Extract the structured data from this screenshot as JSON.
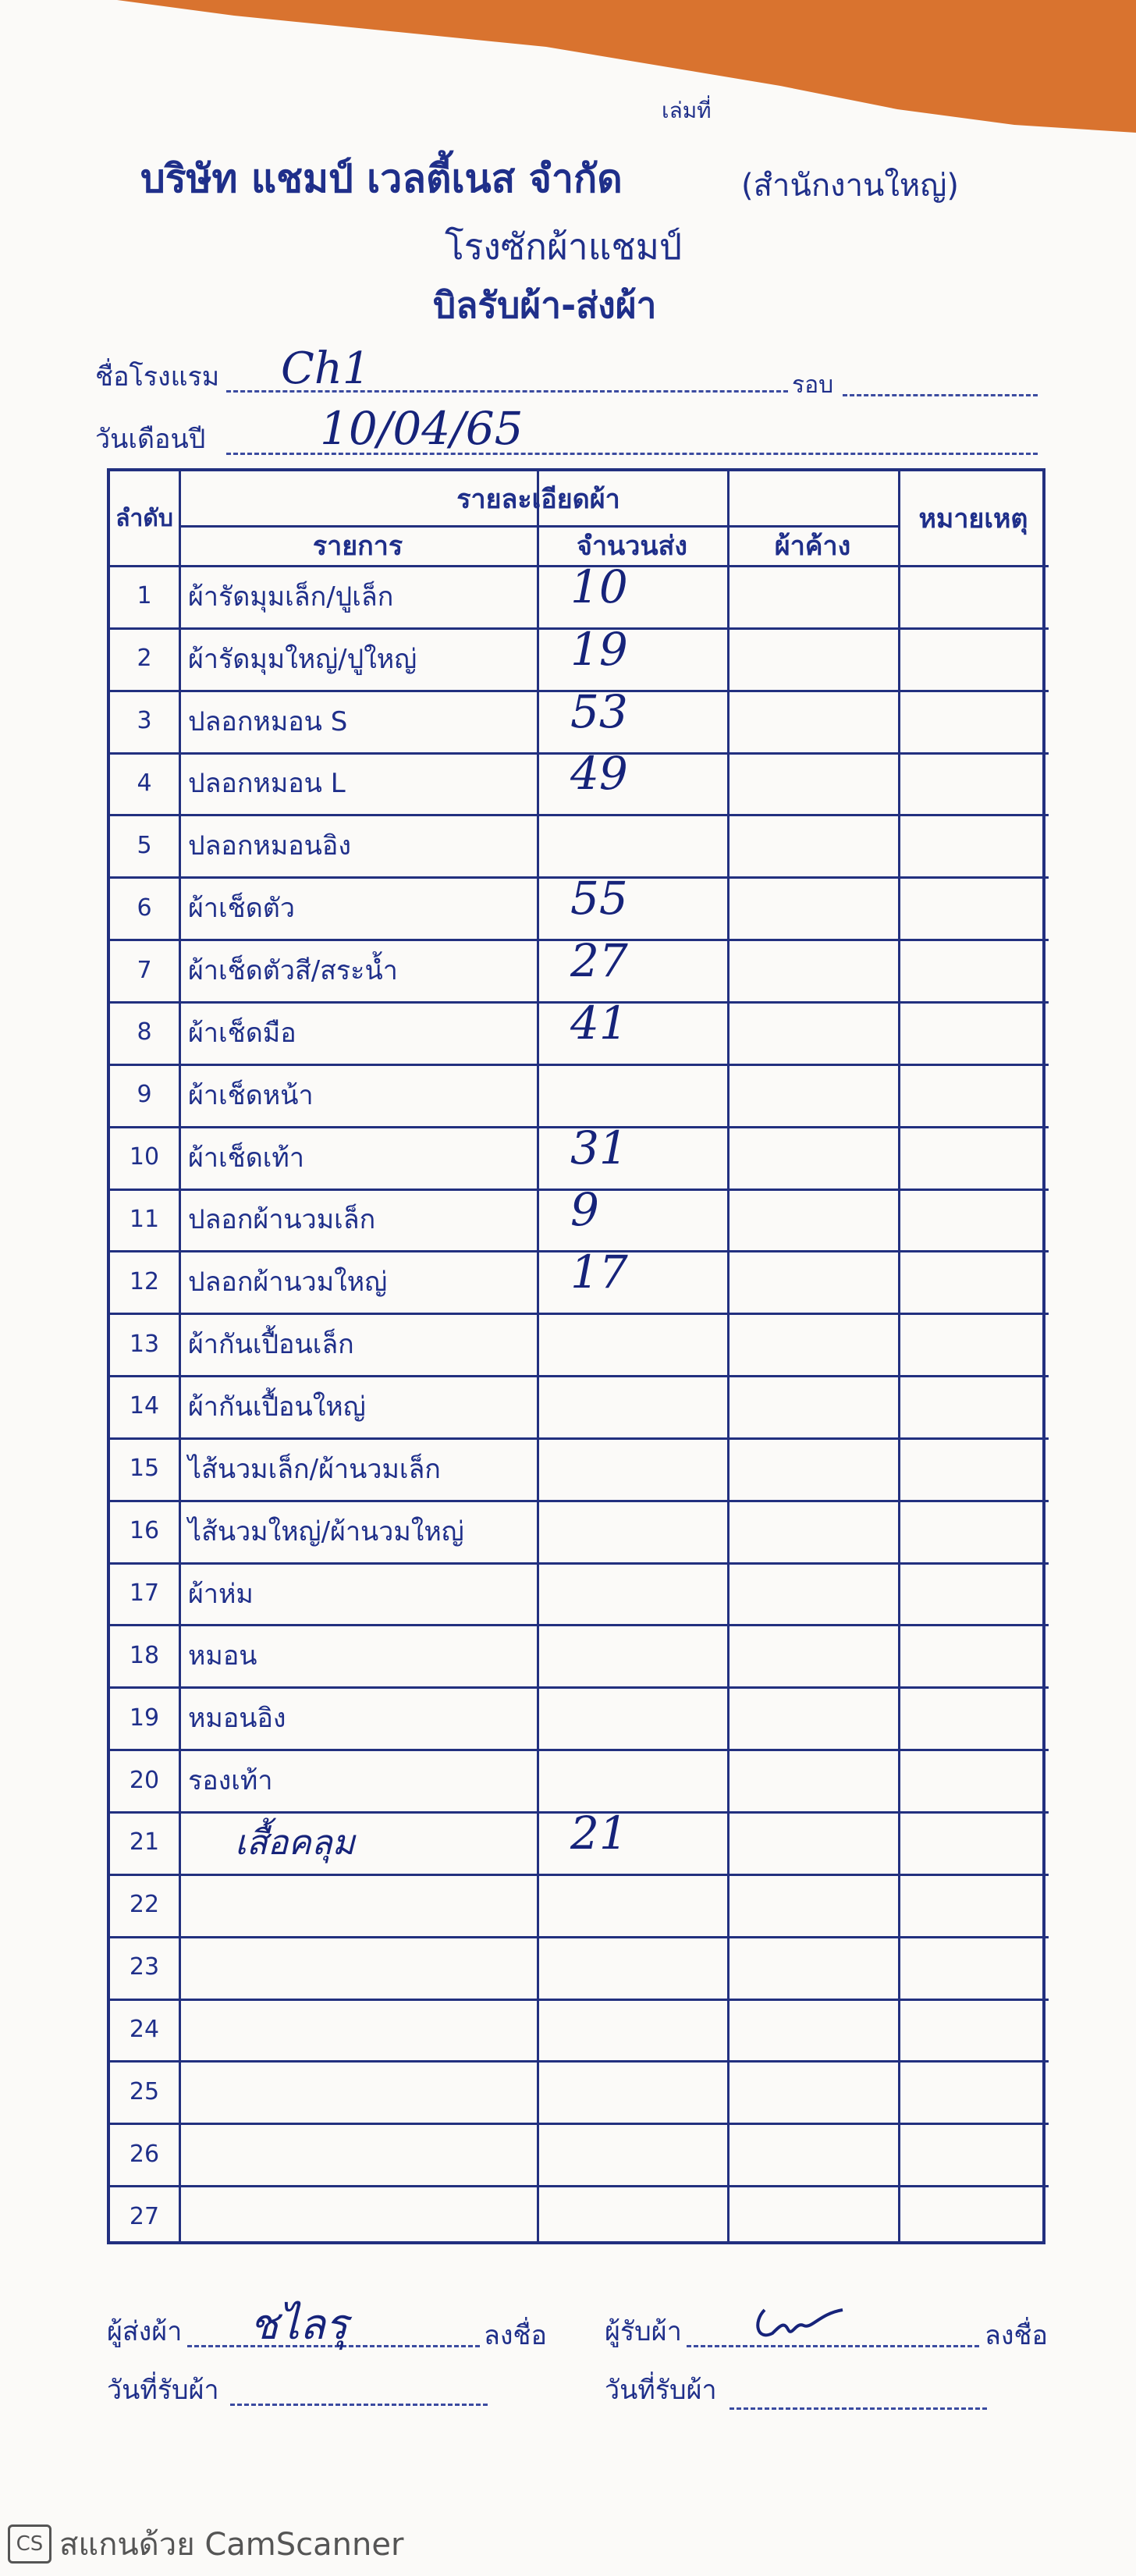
{
  "header": {
    "book_no": "เล่มที่",
    "company": "บริษัท แชมป์ เวลตี้เนส จำกัด",
    "branch": "(สำนักงานใหญ่)",
    "subtitle": "โรงซักผ้าแชมป์",
    "form_title": "บิลรับผ้า-ส่งผ้า"
  },
  "fields": {
    "hotel_label": "ชื่อโรงแรม",
    "hotel_value": "Ch1",
    "round_label": "รอบ",
    "date_label": "วันเดือนปี",
    "date_value": "10/04/65"
  },
  "table": {
    "headers": {
      "no": "ลำดับ",
      "details": "รายละเอียดผ้า",
      "item": "รายการ",
      "qty": "จำนวนส่ง",
      "pending": "ผ้าค้าง",
      "remark": "หมายเหตุ"
    },
    "rows": [
      [
        "1",
        "ผ้ารัดมุมเล็ก/ปูเล็ก",
        "10"
      ],
      [
        "2",
        "ผ้ารัดมุมใหญ่/ปูใหญ่",
        "19"
      ],
      [
        "3",
        "ปลอกหมอน S",
        "53"
      ],
      [
        "4",
        "ปลอกหมอน L",
        "49"
      ],
      [
        "5",
        "ปลอกหมอนอิง",
        null
      ],
      [
        "6",
        "ผ้าเช็ดตัว",
        "55"
      ],
      [
        "7",
        "ผ้าเช็ดตัวสี/สระน้ำ",
        "27"
      ],
      [
        "8",
        "ผ้าเช็ดมือ",
        "41"
      ],
      [
        "9",
        "ผ้าเช็ดหน้า",
        null
      ],
      [
        "10",
        "ผ้าเช็ดเท้า",
        "31"
      ],
      [
        "11",
        "ปลอกผ้านวมเล็ก",
        "9"
      ],
      [
        "12",
        "ปลอกผ้านวมใหญ่",
        "17"
      ],
      [
        "13",
        "ผ้ากันเปื้อนเล็ก",
        null
      ],
      [
        "14",
        "ผ้ากันเปื้อนใหญ่",
        null
      ],
      [
        "15",
        "ไส้นวมเล็ก/ผ้านวมเล็ก",
        null
      ],
      [
        "16",
        "ไส้นวมใหญ่/ผ้านวมใหญ่",
        null
      ],
      [
        "17",
        "ผ้าห่ม",
        null
      ],
      [
        "18",
        "หมอน",
        null
      ],
      [
        "19",
        "หมอนอิง",
        null
      ],
      [
        "20",
        "รองเท้า",
        null
      ],
      [
        "21",
        "เสื้อคลุม",
        "21"
      ],
      [
        "22",
        null,
        null
      ],
      [
        "23",
        null,
        null
      ],
      [
        "24",
        null,
        null
      ],
      [
        "25",
        null,
        null
      ],
      [
        "26",
        null,
        null
      ],
      [
        "27",
        null,
        null
      ]
    ]
  },
  "footer": {
    "sender_label": "ผู้ส่งผ้า",
    "sender_signature": "ชไลรุ",
    "sign_label_1": "ลงชื่อ",
    "receiver_label": "ผู้รับผ้า",
    "sign_label_2": "ลงชื่อ",
    "received_date_label_1": "วันที่รับผ้า",
    "received_date_label_2": "วันที่รับผ้า"
  },
  "watermark": "สแกนด้วย CamScanner"
}
